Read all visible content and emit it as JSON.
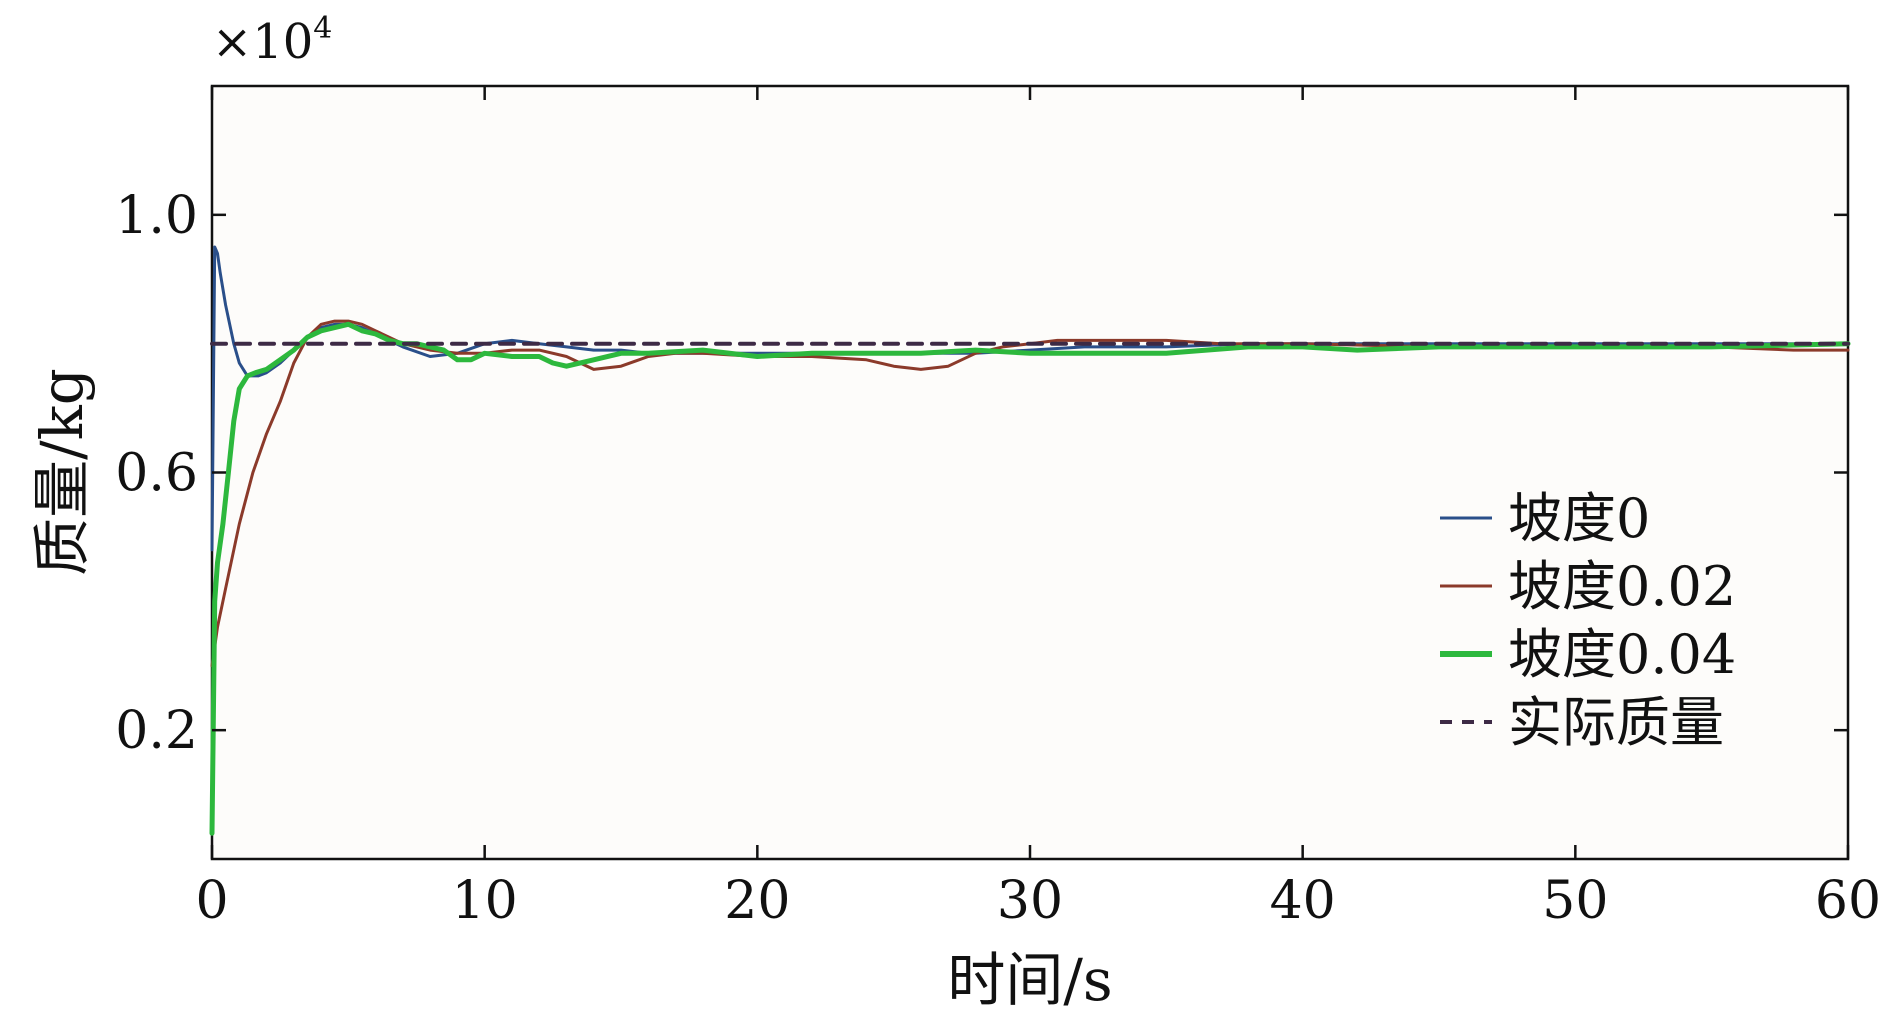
{
  "chart_data": {
    "type": "line",
    "title": "",
    "xlabel": "时间/s",
    "ylabel": "质量/kg",
    "y_multiplier": "×10",
    "y_multiplier_exp": "4",
    "xlim": [
      0,
      60
    ],
    "ylim": [
      0,
      1.2
    ],
    "xticks": [
      0,
      10,
      20,
      30,
      40,
      50,
      60
    ],
    "yticks": [
      0.2,
      0.6,
      1.0
    ],
    "xtick_labels": [
      "0",
      "10",
      "20",
      "30",
      "40",
      "50",
      "60"
    ],
    "ytick_labels": [
      "0.2",
      "0.6",
      "1.0"
    ],
    "grid": false,
    "legend_position": "right",
    "series": [
      {
        "name": "坡度0",
        "color": "#2a4f8a",
        "style": "solid",
        "x": [
          0,
          0.1,
          0.2,
          0.3,
          0.5,
          0.8,
          1.0,
          1.3,
          1.7,
          2.0,
          2.5,
          3.0,
          3.5,
          4.0,
          4.5,
          5.0,
          5.5,
          6.0,
          7.0,
          8.0,
          9.0,
          10.0,
          11.0,
          12.0,
          13.0,
          14.0,
          15.0,
          16.0,
          18.0,
          20.0,
          22.0,
          24.0,
          26.0,
          28.0,
          30.0,
          32.0,
          35.0,
          38.0,
          40.0,
          45.0,
          50.0,
          55.0,
          60.0
        ],
        "values": [
          0.48,
          0.95,
          0.94,
          0.91,
          0.86,
          0.8,
          0.77,
          0.75,
          0.75,
          0.755,
          0.77,
          0.79,
          0.81,
          0.825,
          0.83,
          0.83,
          0.825,
          0.815,
          0.795,
          0.78,
          0.785,
          0.8,
          0.805,
          0.8,
          0.795,
          0.79,
          0.79,
          0.785,
          0.785,
          0.785,
          0.785,
          0.785,
          0.785,
          0.785,
          0.79,
          0.795,
          0.795,
          0.8,
          0.8,
          0.8,
          0.8,
          0.8,
          0.8
        ]
      },
      {
        "name": "坡度0.02",
        "color": "#8b3a2a",
        "style": "solid",
        "x": [
          0,
          0.2,
          0.5,
          1.0,
          1.5,
          2.0,
          2.5,
          3.0,
          3.5,
          4.0,
          4.5,
          5.0,
          5.5,
          6.0,
          7.0,
          8.0,
          9.0,
          10.0,
          11.0,
          12.0,
          13.0,
          14.0,
          15.0,
          16.0,
          17.0,
          18.0,
          20.0,
          22.0,
          24.0,
          25.0,
          26.0,
          27.0,
          28.0,
          29.0,
          30.0,
          31.0,
          33.0,
          35.0,
          37.0,
          38.0,
          40.0,
          45.0,
          50.0,
          55.0,
          58.0,
          60.0
        ],
        "values": [
          0.3,
          0.36,
          0.42,
          0.52,
          0.6,
          0.66,
          0.71,
          0.77,
          0.81,
          0.83,
          0.835,
          0.835,
          0.83,
          0.82,
          0.8,
          0.79,
          0.785,
          0.785,
          0.79,
          0.79,
          0.78,
          0.76,
          0.765,
          0.78,
          0.785,
          0.785,
          0.78,
          0.78,
          0.775,
          0.765,
          0.76,
          0.765,
          0.785,
          0.795,
          0.8,
          0.805,
          0.805,
          0.805,
          0.8,
          0.8,
          0.8,
          0.795,
          0.795,
          0.795,
          0.79,
          0.79
        ]
      },
      {
        "name": "坡度0.04",
        "color": "#2db83d",
        "style": "solid",
        "x": [
          0,
          0.1,
          0.2,
          0.4,
          0.6,
          0.8,
          1.0,
          1.3,
          1.6,
          2.0,
          2.5,
          3.0,
          3.5,
          4.0,
          4.5,
          5.0,
          5.5,
          6.0,
          6.5,
          7.0,
          7.5,
          8.0,
          8.5,
          9.0,
          9.5,
          10.0,
          11.0,
          12.0,
          12.5,
          13.0,
          14.0,
          15.0,
          16.0,
          18.0,
          20.0,
          22.0,
          24.0,
          26.0,
          28.0,
          30.0,
          32.0,
          35.0,
          38.0,
          40.0,
          42.0,
          45.0,
          50.0,
          55.0,
          60.0
        ],
        "values": [
          0.04,
          0.4,
          0.46,
          0.52,
          0.6,
          0.68,
          0.73,
          0.75,
          0.755,
          0.76,
          0.775,
          0.79,
          0.81,
          0.82,
          0.825,
          0.83,
          0.82,
          0.815,
          0.805,
          0.8,
          0.8,
          0.795,
          0.79,
          0.775,
          0.775,
          0.785,
          0.78,
          0.78,
          0.77,
          0.765,
          0.775,
          0.785,
          0.785,
          0.79,
          0.78,
          0.785,
          0.785,
          0.785,
          0.79,
          0.785,
          0.785,
          0.785,
          0.795,
          0.795,
          0.79,
          0.795,
          0.795,
          0.795,
          0.8
        ]
      },
      {
        "name": "实际质量",
        "color": "#3d2a45",
        "style": "dashed",
        "x": [
          0,
          60
        ],
        "values": [
          0.8,
          0.8
        ]
      }
    ]
  }
}
